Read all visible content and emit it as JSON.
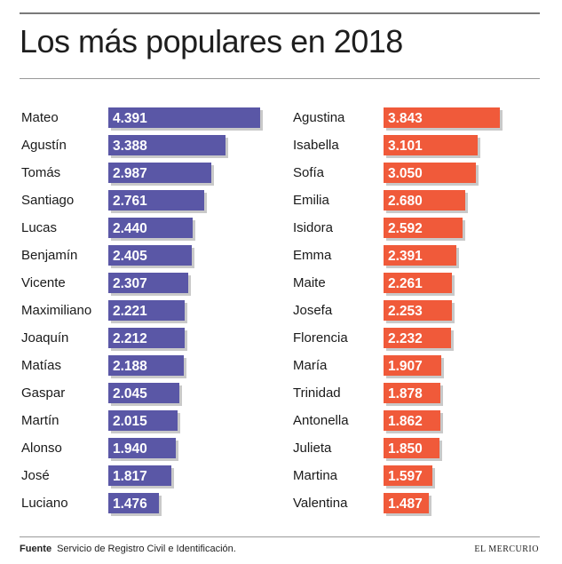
{
  "title": "Los más populares en 2018",
  "footer": {
    "source_label": "Fuente",
    "source_text": "Servicio de Registro Civil e Identificación.",
    "brand": "EL MERCURIO"
  },
  "colors": {
    "boys": "#5a57a6",
    "girls": "#f05a3a",
    "shadow": "#c9c9c9"
  },
  "chart_data": [
    {
      "type": "bar",
      "orientation": "horizontal",
      "series_name": "boys",
      "xlim": [
        0,
        4391
      ],
      "categories": [
        "Mateo",
        "Agustín",
        "Tomás",
        "Santiago",
        "Lucas",
        "Benjamín",
        "Vicente",
        "Maximiliano",
        "Joaquín",
        "Matías",
        "Gaspar",
        "Martín",
        "Alonso",
        "José",
        "Luciano"
      ],
      "values": [
        4391,
        3388,
        2987,
        2761,
        2440,
        2405,
        2307,
        2221,
        2212,
        2188,
        2045,
        2015,
        1940,
        1817,
        1476
      ],
      "labels": [
        "4.391",
        "3.388",
        "2.987",
        "2.761",
        "2.440",
        "2.405",
        "2.307",
        "2.221",
        "2.212",
        "2.188",
        "2.045",
        "2.015",
        "1.940",
        "1.817",
        "1.476"
      ]
    },
    {
      "type": "bar",
      "orientation": "horizontal",
      "series_name": "girls",
      "xlim": [
        0,
        4391
      ],
      "categories": [
        "Agustina",
        "Isabella",
        "Sofía",
        "Emilia",
        "Isidora",
        "Emma",
        "Maite",
        "Josefa",
        "Florencia",
        "María",
        "Trinidad",
        "Antonella",
        "Julieta",
        "Martina",
        "Valentina"
      ],
      "values": [
        3843,
        3101,
        3050,
        2680,
        2592,
        2391,
        2261,
        2253,
        2232,
        1907,
        1878,
        1862,
        1850,
        1597,
        1487
      ],
      "labels": [
        "3.843",
        "3.101",
        "3.050",
        "2.680",
        "2.592",
        "2.391",
        "2.261",
        "2.253",
        "2.232",
        "1.907",
        "1.878",
        "1.862",
        "1.850",
        "1.597",
        "1.487"
      ]
    }
  ]
}
